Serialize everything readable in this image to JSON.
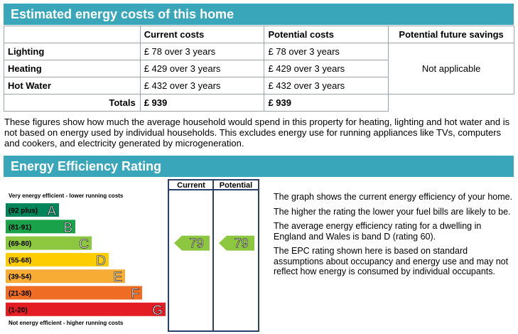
{
  "costs_section": {
    "title": "Estimated energy costs of this home",
    "headers": [
      "",
      "Current costs",
      "Potential costs",
      "Potential future savings"
    ],
    "rows": [
      {
        "label": "Lighting",
        "current": "£ 78 over 3 years",
        "potential": "£ 78 over 3 years"
      },
      {
        "label": "Heating",
        "current": "£ 429 over 3 years",
        "potential": "£ 429 over 3 years"
      },
      {
        "label": "Hot Water",
        "current": "£ 432 over 3 years",
        "potential": "£ 432 over 3 years"
      }
    ],
    "savings": "Not applicable",
    "totals": {
      "label": "Totals",
      "current": "£ 939",
      "potential": "£ 939"
    },
    "note": "These figures show how much the average household would spend in this property for heating, lighting and hot water and is not based on energy used by individual households. This excludes energy use for running appliances like TVs, computers and cookers, and electricity generated by microgeneration."
  },
  "rating_section": {
    "title": "Energy Efficiency Rating",
    "col_current": "Current",
    "col_potential": "Potential",
    "top_label": "Very energy efficient - lower running costs",
    "bottom_label": "Not energy efficient - higher running costs",
    "bands": [
      {
        "range": "(92 plus)",
        "letter": "A",
        "color": "#00845a"
      },
      {
        "range": "(81-91)",
        "letter": "B",
        "color": "#19a24a"
      },
      {
        "range": "(69-80)",
        "letter": "C",
        "color": "#8dc63f"
      },
      {
        "range": "(55-68)",
        "letter": "D",
        "color": "#ffcc00"
      },
      {
        "range": "(39-54)",
        "letter": "E",
        "color": "#f7ac35"
      },
      {
        "range": "(21-38)",
        "letter": "F",
        "color": "#ef6c24"
      },
      {
        "range": "(1-20)",
        "letter": "G",
        "color": "#e31d23"
      }
    ],
    "current_rating": 79,
    "potential_rating": 79,
    "arrow_color": "#8dc63f",
    "description": [
      "The graph shows the current energy efficiency of your home.",
      "The higher the rating the lower your fuel bills are likely to be.",
      "The average energy efficiency rating for a dwelling in England and Wales is band D (rating 60).",
      "The EPC rating shown here is based on standard assumptions about occupancy and energy use and may not reflect how energy is consumed by individual occupants."
    ]
  }
}
